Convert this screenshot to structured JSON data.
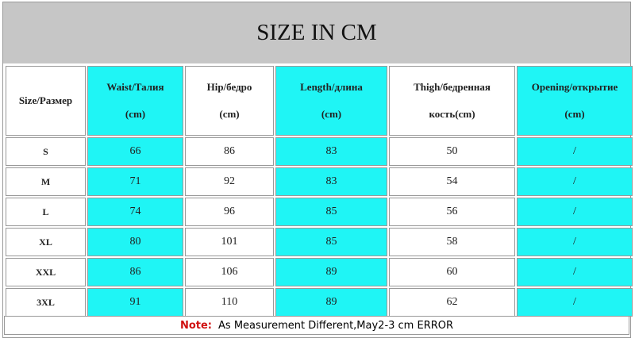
{
  "header": {
    "title": "SIZE IN CM"
  },
  "table": {
    "columns": [
      [
        "Size/Размер"
      ],
      [
        "Waist/Талия",
        "(cm)"
      ],
      [
        "Hip/бедро",
        "(cm)"
      ],
      [
        "Length/длина",
        "(cm)"
      ],
      [
        "Thigh/бедренная",
        "кость(cm)"
      ],
      [
        "Opening/открытие",
        "(cm)"
      ]
    ],
    "rows": [
      [
        "S",
        66,
        86,
        83,
        50,
        "/"
      ],
      [
        "M",
        71,
        92,
        83,
        54,
        "/"
      ],
      [
        "L",
        74,
        96,
        85,
        56,
        "/"
      ],
      [
        "XL",
        80,
        101,
        85,
        58,
        "/"
      ],
      [
        "XXL",
        86,
        106,
        89,
        60,
        "/"
      ],
      [
        "3XL",
        91,
        110,
        89,
        62,
        "/"
      ]
    ]
  },
  "note": {
    "label": "Note:",
    "text": "As Measurement Different,May2-3 cm ERROR"
  }
}
